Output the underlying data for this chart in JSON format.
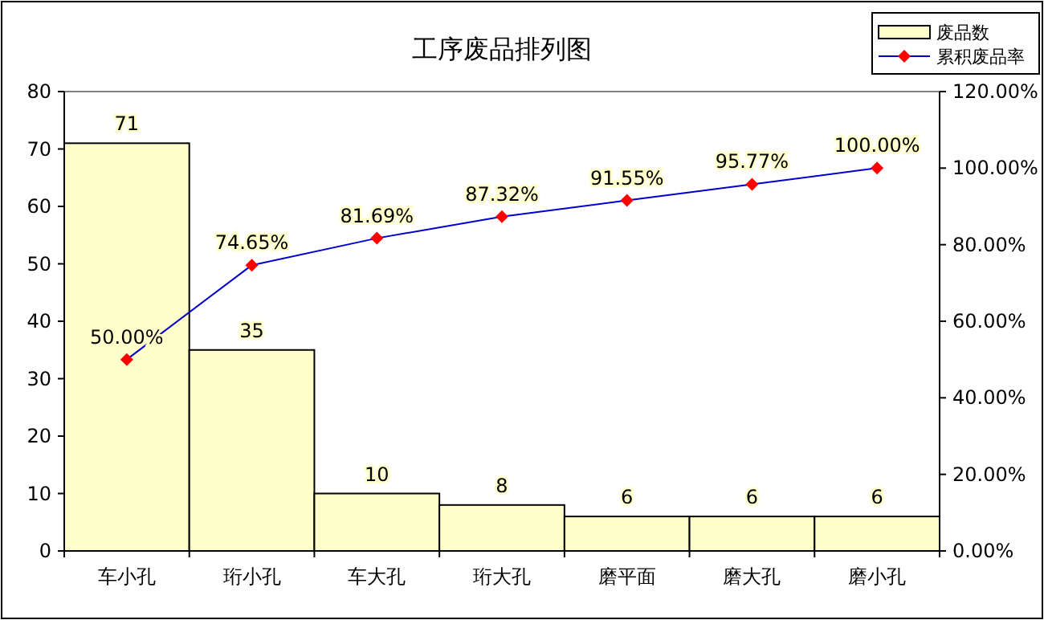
{
  "chart_data": {
    "type": "bar",
    "title": "工序废品排列图",
    "categories": [
      "车小孔",
      "珩小孔",
      "车大孔",
      "珩大孔",
      "磨平面",
      "磨大孔",
      "磨小孔"
    ],
    "series": [
      {
        "name": "废品数",
        "color": "#ffffcc",
        "values": [
          71,
          35,
          10,
          8,
          6,
          6,
          6
        ],
        "value_labels": [
          "71",
          "35",
          "10",
          "8",
          "6",
          "6",
          "6"
        ]
      },
      {
        "name": "累积废品率",
        "type": "line",
        "axis": "y2",
        "color": "#0000cc",
        "marker": "diamond",
        "values": [
          50.0,
          74.65,
          81.69,
          87.32,
          91.55,
          95.77,
          100.0
        ],
        "value_labels": [
          "50.00%",
          "74.65%",
          "81.69%",
          "87.32%",
          "91.55%",
          "95.77%",
          "100.00%"
        ]
      }
    ],
    "ylim": [
      0,
      80
    ],
    "yticks": [
      0,
      10,
      20,
      30,
      40,
      50,
      60,
      70,
      80
    ],
    "y2lim": [
      0,
      120
    ],
    "y2ticks": [
      {
        "value": 0,
        "label": "0.00%"
      },
      {
        "value": 20,
        "label": "20.00%"
      },
      {
        "value": 40,
        "label": "40.00%"
      },
      {
        "value": 60,
        "label": "60.00%"
      },
      {
        "value": 80,
        "label": "80.00%"
      },
      {
        "value": 100,
        "label": "100.00%"
      },
      {
        "value": 120,
        "label": "120.00%"
      }
    ],
    "grid": false,
    "legend": "top right"
  }
}
